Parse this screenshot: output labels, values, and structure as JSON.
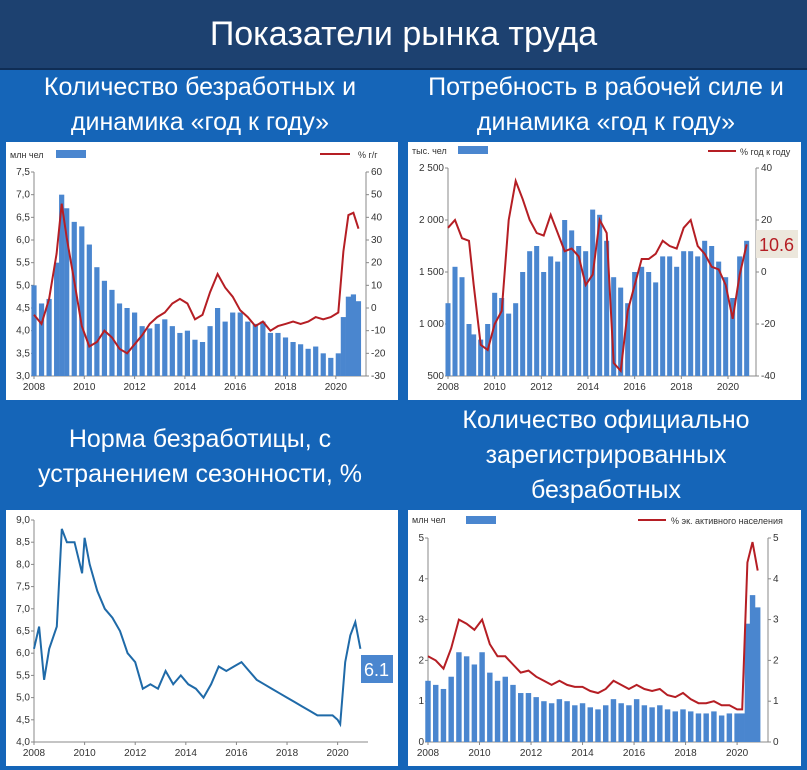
{
  "header": {
    "title": "Показатели рынка труда"
  },
  "colors": {
    "bar": "#4a86cf",
    "line_red": "#b51e24",
    "line_blue": "#1f6aa8",
    "background": "#1565b8",
    "title_bg": "#1d4170"
  },
  "panels": {
    "p1": {
      "title_line1": "Количество безработных и",
      "title_line2": "динамика «год к году»",
      "unit_left": "млн чел",
      "unit_right": "% г/г"
    },
    "p2": {
      "title_line1": "Потребность в рабочей силе и",
      "title_line2": "динамика «год к году»",
      "unit_left": "тыс. чел",
      "unit_right": "% год к году",
      "callout": "10.6"
    },
    "p3": {
      "title_line1": "Норма безработицы, с",
      "title_line2": "устранением сезонности, %",
      "callout": "6.1"
    },
    "p4": {
      "title_line1": "Количество официально",
      "title_line2": "зарегистрированных",
      "title_line3": "безработных",
      "unit_left": "млн чел",
      "unit_right": "% эк. активного населения"
    }
  },
  "chart_data": [
    {
      "id": "p1",
      "type": "bar",
      "x_ticks": [
        "2008",
        "2010",
        "2012",
        "2014",
        "2016",
        "2018",
        "2020"
      ],
      "x_range": [
        2008,
        2021.2
      ],
      "y_left": {
        "range": [
          3.0,
          7.5
        ],
        "ticks": [
          "3,0",
          "3,5",
          "4,0",
          "4,5",
          "5,0",
          "5,5",
          "6,0",
          "6,5",
          "7,0",
          "7,5"
        ]
      },
      "y_right": {
        "range": [
          -30,
          60
        ],
        "ticks": [
          "-30",
          "-20",
          "-10",
          "0",
          "10",
          "20",
          "30",
          "40",
          "50",
          "60"
        ]
      },
      "series": [
        {
          "axis": "left",
          "kind": "bar",
          "x": [
            2008,
            2008.3,
            2008.6,
            2008.9,
            2009.1,
            2009.3,
            2009.6,
            2009.9,
            2010.2,
            2010.5,
            2010.8,
            2011.1,
            2011.4,
            2011.7,
            2012,
            2012.3,
            2012.6,
            2012.9,
            2013.2,
            2013.5,
            2013.8,
            2014.1,
            2014.4,
            2014.7,
            2015,
            2015.3,
            2015.6,
            2015.9,
            2016.2,
            2016.5,
            2016.8,
            2017.1,
            2017.4,
            2017.7,
            2018,
            2018.3,
            2018.6,
            2018.9,
            2019.2,
            2019.5,
            2019.8,
            2020.1,
            2020.3,
            2020.5,
            2020.7,
            2020.9
          ],
          "y": [
            5.0,
            4.6,
            4.7,
            5.5,
            7.0,
            6.7,
            6.4,
            6.3,
            5.9,
            5.4,
            5.1,
            4.9,
            4.6,
            4.5,
            4.4,
            4.1,
            4.05,
            4.15,
            4.25,
            4.1,
            3.95,
            4.0,
            3.8,
            3.75,
            4.1,
            4.5,
            4.2,
            4.4,
            4.4,
            4.2,
            4.15,
            4.2,
            3.95,
            3.95,
            3.85,
            3.75,
            3.7,
            3.6,
            3.65,
            3.5,
            3.4,
            3.5,
            4.3,
            4.75,
            4.8,
            4.65
          ]
        },
        {
          "axis": "right",
          "kind": "line",
          "x": [
            2008,
            2008.3,
            2008.6,
            2008.9,
            2009.1,
            2009.3,
            2009.6,
            2009.9,
            2010.2,
            2010.5,
            2010.8,
            2011.1,
            2011.4,
            2011.7,
            2012,
            2012.3,
            2012.6,
            2012.9,
            2013.2,
            2013.5,
            2013.8,
            2014.1,
            2014.4,
            2014.7,
            2015,
            2015.3,
            2015.6,
            2015.9,
            2016.2,
            2016.5,
            2016.8,
            2017.1,
            2017.4,
            2017.7,
            2018,
            2018.3,
            2018.6,
            2018.9,
            2019.2,
            2019.5,
            2019.8,
            2020.1,
            2020.3,
            2020.5,
            2020.7,
            2020.9
          ],
          "y": [
            -3,
            -7,
            4,
            24,
            46,
            31,
            12,
            -8,
            -17,
            -15,
            -10,
            -13,
            -18,
            -20,
            -16,
            -12,
            -7,
            -4,
            -2,
            2,
            4,
            2,
            -5,
            -3,
            7,
            15,
            9,
            5,
            -1,
            -4,
            -8,
            -6,
            -10,
            -8,
            -7,
            -6,
            -7,
            -6,
            -4,
            -5,
            -4,
            -2,
            25,
            41,
            42,
            35
          ]
        }
      ]
    },
    {
      "id": "p2",
      "type": "bar",
      "x_ticks": [
        "2008",
        "2010",
        "2012",
        "2014",
        "2016",
        "2018",
        "2020"
      ],
      "x_range": [
        2008,
        2021.2
      ],
      "y_left": {
        "range": [
          500,
          2500
        ],
        "ticks": [
          "500",
          "1 000",
          "1 500",
          "2 000",
          "2 500"
        ]
      },
      "y_right": {
        "range": [
          -40,
          40
        ],
        "ticks": [
          "-40",
          "-20",
          "0",
          "20",
          "40"
        ]
      },
      "series": [
        {
          "axis": "left",
          "kind": "bar",
          "x": [
            2008,
            2008.3,
            2008.6,
            2008.9,
            2009.1,
            2009.4,
            2009.7,
            2010,
            2010.3,
            2010.6,
            2010.9,
            2011.2,
            2011.5,
            2011.8,
            2012.1,
            2012.4,
            2012.7,
            2013,
            2013.3,
            2013.6,
            2013.9,
            2014.2,
            2014.5,
            2014.8,
            2015.1,
            2015.4,
            2015.7,
            2016,
            2016.3,
            2016.6,
            2016.9,
            2017.2,
            2017.5,
            2017.8,
            2018.1,
            2018.4,
            2018.7,
            2019,
            2019.3,
            2019.6,
            2019.9,
            2020.2,
            2020.5,
            2020.8
          ],
          "y": [
            1200,
            1550,
            1450,
            1000,
            900,
            850,
            1000,
            1300,
            1250,
            1100,
            1200,
            1500,
            1700,
            1750,
            1500,
            1650,
            1600,
            2000,
            1900,
            1750,
            1700,
            2100,
            2050,
            1800,
            1450,
            1350,
            1200,
            1500,
            1550,
            1500,
            1400,
            1650,
            1650,
            1550,
            1700,
            1700,
            1650,
            1800,
            1750,
            1600,
            1450,
            1250,
            1650,
            1800
          ]
        },
        {
          "axis": "right",
          "kind": "line",
          "x": [
            2008,
            2008.3,
            2008.6,
            2008.9,
            2009.1,
            2009.4,
            2009.7,
            2010,
            2010.3,
            2010.6,
            2010.9,
            2011.2,
            2011.5,
            2011.8,
            2012.1,
            2012.4,
            2012.7,
            2013,
            2013.3,
            2013.6,
            2013.9,
            2014.2,
            2014.5,
            2014.8,
            2015.1,
            2015.4,
            2015.7,
            2016,
            2016.3,
            2016.6,
            2016.9,
            2017.2,
            2017.5,
            2017.8,
            2018.1,
            2018.4,
            2018.7,
            2019,
            2019.3,
            2019.6,
            2019.9,
            2020.2,
            2020.5,
            2020.8
          ],
          "y": [
            17,
            20,
            13,
            12,
            -5,
            -28,
            -30,
            -20,
            -15,
            20,
            35,
            28,
            20,
            15,
            14,
            22,
            15,
            8,
            9,
            6,
            -5,
            -1,
            20,
            15,
            -35,
            -38,
            -15,
            -5,
            5,
            5,
            7,
            12,
            10,
            9,
            17,
            20,
            10,
            7,
            2,
            1,
            -5,
            -18,
            -1,
            10.6
          ]
        }
      ]
    },
    {
      "id": "p3",
      "type": "line",
      "x_ticks": [
        "2008",
        "2010",
        "2012",
        "2014",
        "2016",
        "2018",
        "2020"
      ],
      "x_range": [
        2008,
        2021.2
      ],
      "y_left": {
        "range": [
          4.0,
          9.0
        ],
        "ticks": [
          "4,0",
          "4,5",
          "5,0",
          "5,5",
          "6,0",
          "6,5",
          "7,0",
          "7,5",
          "8,0",
          "8,5",
          "9,0"
        ]
      },
      "series": [
        {
          "axis": "left",
          "kind": "line",
          "x": [
            2008,
            2008.2,
            2008.4,
            2008.6,
            2008.9,
            2009.1,
            2009.3,
            2009.6,
            2009.9,
            2010,
            2010.2,
            2010.5,
            2010.8,
            2011.1,
            2011.4,
            2011.7,
            2012,
            2012.3,
            2012.6,
            2012.9,
            2013.2,
            2013.5,
            2013.8,
            2014.1,
            2014.4,
            2014.7,
            2015,
            2015.3,
            2015.6,
            2015.9,
            2016.2,
            2016.5,
            2016.8,
            2017.1,
            2017.4,
            2017.7,
            2018,
            2018.3,
            2018.6,
            2018.9,
            2019.2,
            2019.5,
            2019.8,
            2020,
            2020.1,
            2020.3,
            2020.5,
            2020.7,
            2020.9
          ],
          "y": [
            6.1,
            6.6,
            5.4,
            6.1,
            6.6,
            8.8,
            8.5,
            8.5,
            7.8,
            8.6,
            8.0,
            7.4,
            7.0,
            6.8,
            6.5,
            6.0,
            5.8,
            5.2,
            5.3,
            5.2,
            5.6,
            5.3,
            5.5,
            5.3,
            5.2,
            5.0,
            5.3,
            5.7,
            5.6,
            5.7,
            5.8,
            5.6,
            5.4,
            5.3,
            5.2,
            5.1,
            5.0,
            4.9,
            4.8,
            4.7,
            4.6,
            4.6,
            4.6,
            4.5,
            4.4,
            5.8,
            6.4,
            6.7,
            6.1
          ]
        }
      ]
    },
    {
      "id": "p4",
      "type": "bar",
      "x_ticks": [
        "2008",
        "2010",
        "2012",
        "2014",
        "2016",
        "2018",
        "2020"
      ],
      "x_range": [
        2008,
        2021.2
      ],
      "y_left": {
        "range": [
          0,
          5
        ],
        "ticks": [
          "0",
          "1",
          "2",
          "3",
          "4",
          "5"
        ]
      },
      "y_right": {
        "range": [
          0,
          5
        ],
        "ticks": [
          "0",
          "1",
          "2",
          "3",
          "4",
          "5"
        ]
      },
      "series": [
        {
          "axis": "left",
          "kind": "bar",
          "x": [
            2008,
            2008.3,
            2008.6,
            2008.9,
            2009.2,
            2009.5,
            2009.8,
            2010.1,
            2010.4,
            2010.7,
            2011,
            2011.3,
            2011.6,
            2011.9,
            2012.2,
            2012.5,
            2012.8,
            2013.1,
            2013.4,
            2013.7,
            2014,
            2014.3,
            2014.6,
            2014.9,
            2015.2,
            2015.5,
            2015.8,
            2016.1,
            2016.4,
            2016.7,
            2017,
            2017.3,
            2017.6,
            2017.9,
            2018.2,
            2018.5,
            2018.8,
            2019.1,
            2019.4,
            2019.7,
            2020,
            2020.2,
            2020.4,
            2020.6,
            2020.8
          ],
          "y": [
            1.5,
            1.4,
            1.3,
            1.6,
            2.2,
            2.1,
            1.9,
            2.2,
            1.7,
            1.5,
            1.6,
            1.4,
            1.2,
            1.2,
            1.1,
            1.0,
            0.95,
            1.05,
            1.0,
            0.9,
            0.95,
            0.85,
            0.8,
            0.9,
            1.05,
            0.95,
            0.9,
            1.05,
            0.9,
            0.85,
            0.9,
            0.8,
            0.75,
            0.8,
            0.75,
            0.7,
            0.7,
            0.75,
            0.65,
            0.7,
            0.7,
            0.7,
            2.9,
            3.6,
            3.3
          ]
        },
        {
          "axis": "right",
          "kind": "line",
          "x": [
            2008,
            2008.3,
            2008.6,
            2008.9,
            2009.2,
            2009.5,
            2009.8,
            2010.1,
            2010.4,
            2010.7,
            2011,
            2011.3,
            2011.6,
            2011.9,
            2012.2,
            2012.5,
            2012.8,
            2013.1,
            2013.4,
            2013.7,
            2014,
            2014.3,
            2014.6,
            2014.9,
            2015.2,
            2015.5,
            2015.8,
            2016.1,
            2016.4,
            2016.7,
            2017,
            2017.3,
            2017.6,
            2017.9,
            2018.2,
            2018.5,
            2018.8,
            2019.1,
            2019.4,
            2019.7,
            2020,
            2020.2,
            2020.4,
            2020.6,
            2020.8
          ],
          "y": [
            2.1,
            2.0,
            1.8,
            2.3,
            3.0,
            2.9,
            2.75,
            3.0,
            2.4,
            2.1,
            2.1,
            1.9,
            1.7,
            1.75,
            1.6,
            1.5,
            1.4,
            1.5,
            1.4,
            1.35,
            1.35,
            1.25,
            1.2,
            1.3,
            1.5,
            1.4,
            1.3,
            1.4,
            1.3,
            1.25,
            1.3,
            1.15,
            1.1,
            1.2,
            1.05,
            0.95,
            0.95,
            1.0,
            0.9,
            0.9,
            0.8,
            0.8,
            4.4,
            4.9,
            4.2
          ]
        }
      ]
    }
  ]
}
